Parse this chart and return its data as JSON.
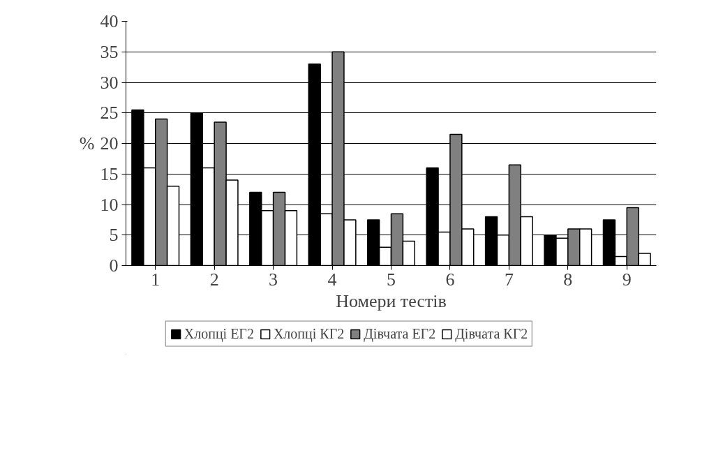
{
  "chart_data": {
    "type": "bar",
    "xlabel": "Номери тестів",
    "ylabel": "%",
    "categories": [
      "1",
      "2",
      "3",
      "4",
      "5",
      "6",
      "7",
      "8",
      "9"
    ],
    "series": [
      {
        "name": "Хлопці ЕГ2",
        "color": "#000000",
        "values": [
          25.5,
          25,
          12,
          33,
          7.5,
          16,
          8,
          5,
          7.5
        ]
      },
      {
        "name": "Хлопці КГ2",
        "color": "#ffffff",
        "values": [
          16,
          16,
          9,
          8.5,
          3,
          5.5,
          5,
          4.5,
          1.5
        ]
      },
      {
        "name": "Дівчата ЕГ2",
        "color": "#808080",
        "values": [
          24,
          23.5,
          12,
          35,
          8.5,
          21.5,
          16.5,
          6,
          9.5
        ]
      },
      {
        "name": "Дівчата КГ2",
        "color": "#ffffff",
        "values": [
          13,
          14,
          9,
          7.5,
          4,
          6,
          8,
          6,
          2
        ]
      }
    ],
    "ylim": [
      0,
      40
    ],
    "yticks": [
      0,
      5,
      10,
      15,
      20,
      25,
      30,
      35,
      40
    ],
    "grid": "y",
    "legend": "bottom"
  }
}
